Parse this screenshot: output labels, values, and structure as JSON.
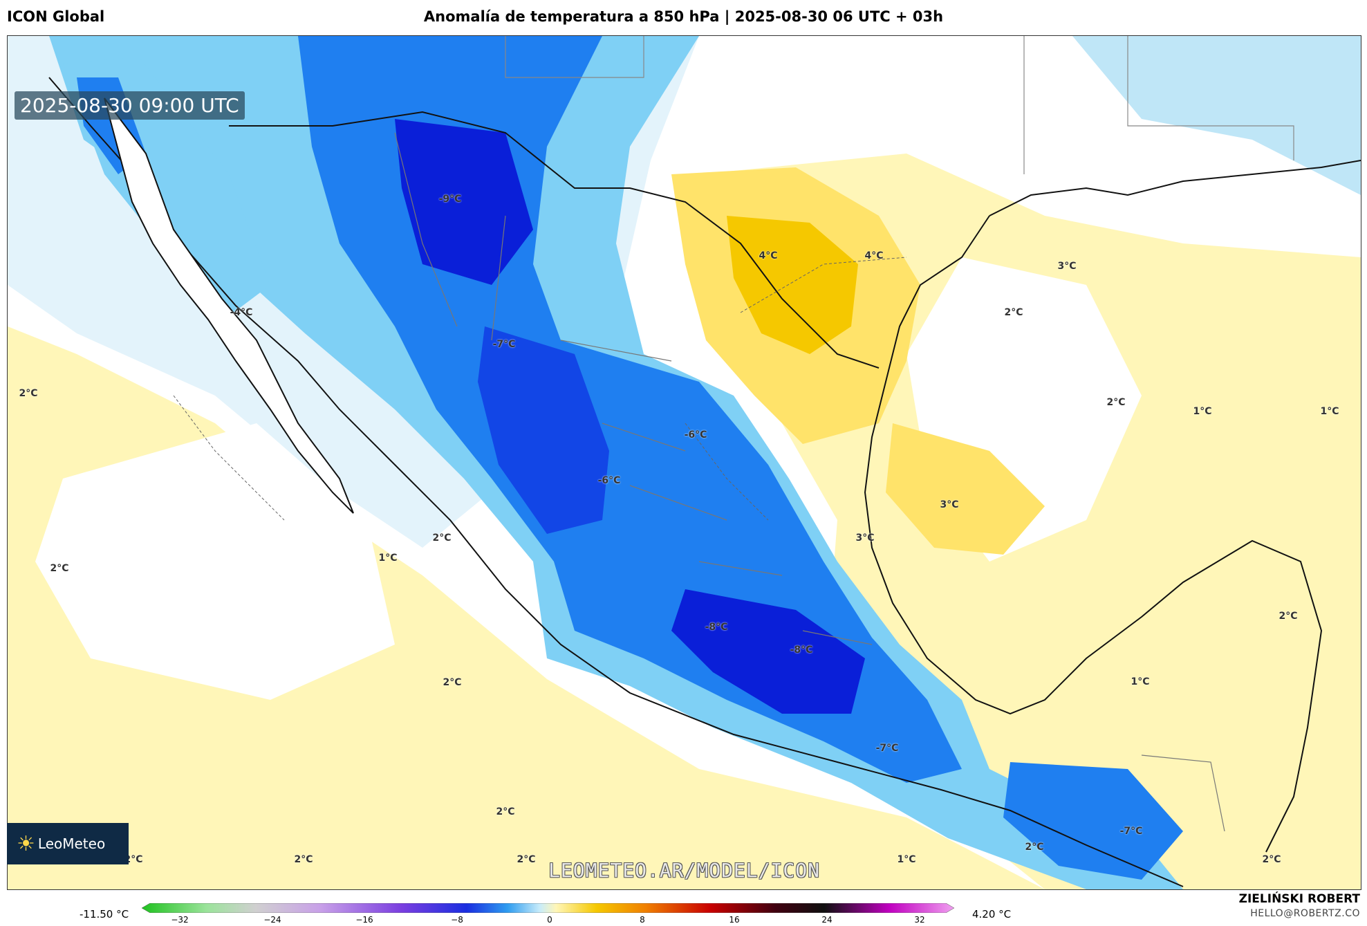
{
  "header": {
    "model": "ICON Global",
    "title": "Anomalía de temperatura a 850 hPa | 2025-08-30 06 UTC + 03h"
  },
  "map": {
    "valid_time": "2025-08-30 09:00 UTC",
    "logo_text": "LeoMeteo",
    "watermark": "LEOMETEO.AR/MODEL/ICON",
    "labels": [
      {
        "text": "-9°C"
      },
      {
        "text": "-7°C"
      },
      {
        "text": "-6°C"
      },
      {
        "text": "-6°C"
      },
      {
        "text": "-8°C"
      },
      {
        "text": "-8°C"
      },
      {
        "text": "-7°C"
      },
      {
        "text": "-4°C"
      },
      {
        "text": "4°C"
      },
      {
        "text": "4°C"
      },
      {
        "text": "3°C"
      },
      {
        "text": "2°C"
      },
      {
        "text": "2°C"
      },
      {
        "text": "1°C"
      },
      {
        "text": "1°C"
      },
      {
        "text": "3°C"
      },
      {
        "text": "3°C"
      },
      {
        "text": "2°C"
      },
      {
        "text": "2°C"
      },
      {
        "text": "1°C"
      },
      {
        "text": "2°C"
      },
      {
        "text": "2°C"
      },
      {
        "text": "2°C"
      },
      {
        "text": "2°C"
      },
      {
        "text": "2°C"
      },
      {
        "text": "2°C"
      },
      {
        "text": "1°C"
      },
      {
        "text": "2°C"
      },
      {
        "text": "2°C"
      },
      {
        "text": "1°C"
      },
      {
        "text": "2°C"
      },
      {
        "text": "-7°C"
      }
    ],
    "colors": {
      "cold_deep": "#0a1fd8",
      "cold_mid": "#1f7ff0",
      "cold_light": "#7fd0f5",
      "cold_pale": "#e3f3fb",
      "warm_pale": "#fff6b8",
      "warm_mid": "#ffe36a",
      "warm_strong": "#f5c800"
    }
  },
  "legend": {
    "min_label": "-11.50 °C",
    "max_label": "4.20 °C",
    "ticks": [
      "−32",
      "−24",
      "−16",
      "−8",
      "0",
      "8",
      "16",
      "24",
      "32"
    ]
  },
  "footer": {
    "author": "ZIELIŃSKI ROBERT",
    "email": "HELLO@ROBERTZ.CO"
  }
}
